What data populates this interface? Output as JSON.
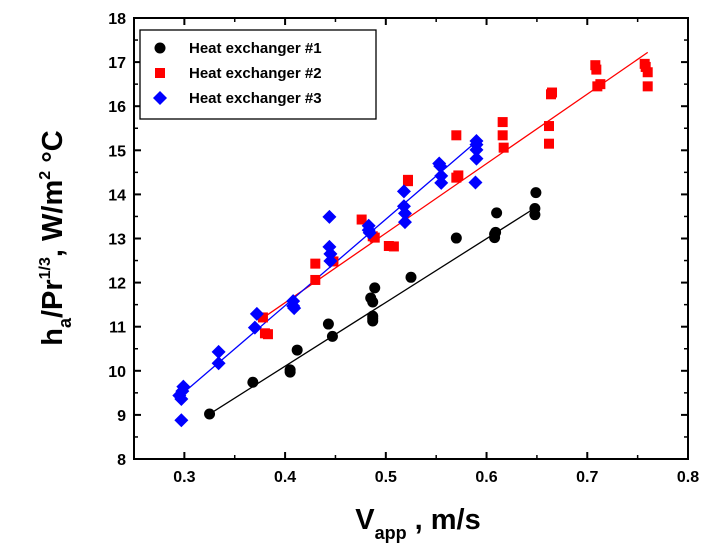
{
  "chart_data": {
    "type": "scatter",
    "xlabel": {
      "main": "V",
      "sub": "app",
      "rest": " , m/s"
    },
    "ylabel": {
      "p1": "h",
      "sub": "a",
      "p2": "/Pr",
      "sup1": "1/3",
      "p3": ", W/m",
      "sup2": "2",
      "p4": " °C"
    },
    "xlim": [
      0.25,
      0.8
    ],
    "ylim": [
      8,
      18
    ],
    "xticks": [
      "0.3",
      "0.4",
      "0.5",
      "0.6",
      "0.7",
      "0.8"
    ],
    "yticks": [
      "8",
      "9",
      "10",
      "11",
      "12",
      "13",
      "14",
      "15",
      "16",
      "17",
      "18"
    ],
    "legend_position": "top-left",
    "series": [
      {
        "name": "Heat exchanger #1",
        "color": "#000000",
        "marker": "circle",
        "fit": [
          [
            0.325,
            9.02
          ],
          [
            0.65,
            13.72
          ]
        ],
        "points": [
          [
            0.325,
            9.02
          ],
          [
            0.368,
            9.74
          ],
          [
            0.405,
            9.97
          ],
          [
            0.405,
            10.02
          ],
          [
            0.412,
            10.47
          ],
          [
            0.443,
            11.06
          ],
          [
            0.447,
            10.78
          ],
          [
            0.485,
            11.65
          ],
          [
            0.487,
            11.56
          ],
          [
            0.487,
            11.19
          ],
          [
            0.487,
            11.13
          ],
          [
            0.487,
            11.24
          ],
          [
            0.489,
            11.88
          ],
          [
            0.525,
            12.12
          ],
          [
            0.57,
            13.01
          ],
          [
            0.608,
            13.02
          ],
          [
            0.608,
            13.1
          ],
          [
            0.609,
            13.14
          ],
          [
            0.61,
            13.58
          ],
          [
            0.648,
            13.54
          ],
          [
            0.648,
            13.68
          ],
          [
            0.649,
            14.04
          ]
        ]
      },
      {
        "name": "Heat exchanger #2",
        "color": "#ff0000",
        "marker": "square",
        "fit": [
          [
            0.375,
            11.15
          ],
          [
            0.76,
            17.22
          ]
        ],
        "points": [
          [
            0.378,
            11.21
          ],
          [
            0.38,
            10.85
          ],
          [
            0.383,
            10.83
          ],
          [
            0.43,
            12.43
          ],
          [
            0.43,
            12.06
          ],
          [
            0.448,
            12.48
          ],
          [
            0.476,
            13.43
          ],
          [
            0.487,
            13.05
          ],
          [
            0.489,
            13.02
          ],
          [
            0.503,
            12.83
          ],
          [
            0.508,
            12.82
          ],
          [
            0.522,
            14.3
          ],
          [
            0.522,
            14.33
          ],
          [
            0.57,
            15.34
          ],
          [
            0.57,
            14.38
          ],
          [
            0.572,
            14.43
          ],
          [
            0.616,
            15.64
          ],
          [
            0.616,
            15.34
          ],
          [
            0.617,
            15.06
          ],
          [
            0.662,
            15.55
          ],
          [
            0.662,
            15.15
          ],
          [
            0.664,
            16.27
          ],
          [
            0.665,
            16.31
          ],
          [
            0.708,
            16.93
          ],
          [
            0.709,
            16.83
          ],
          [
            0.71,
            16.45
          ],
          [
            0.713,
            16.5
          ],
          [
            0.757,
            16.96
          ],
          [
            0.758,
            16.89
          ],
          [
            0.76,
            16.77
          ],
          [
            0.76,
            16.45
          ]
        ]
      },
      {
        "name": "Heat exchanger #3",
        "color": "#0000ff",
        "marker": "diamond",
        "fit": [
          [
            0.295,
            9.42
          ],
          [
            0.59,
            15.2
          ]
        ],
        "points": [
          [
            0.295,
            9.44
          ],
          [
            0.297,
            9.36
          ],
          [
            0.297,
            8.88
          ],
          [
            0.298,
            9.54
          ],
          [
            0.299,
            9.64
          ],
          [
            0.334,
            10.43
          ],
          [
            0.334,
            10.17
          ],
          [
            0.37,
            10.98
          ],
          [
            0.372,
            11.29
          ],
          [
            0.408,
            11.58
          ],
          [
            0.408,
            11.47
          ],
          [
            0.409,
            11.42
          ],
          [
            0.444,
            13.49
          ],
          [
            0.444,
            12.81
          ],
          [
            0.445,
            12.65
          ],
          [
            0.445,
            12.49
          ],
          [
            0.483,
            13.29
          ],
          [
            0.483,
            13.19
          ],
          [
            0.484,
            13.13
          ],
          [
            0.518,
            14.07
          ],
          [
            0.518,
            13.73
          ],
          [
            0.519,
            13.57
          ],
          [
            0.519,
            13.37
          ],
          [
            0.553,
            14.7
          ],
          [
            0.554,
            14.64
          ],
          [
            0.555,
            14.42
          ],
          [
            0.555,
            14.26
          ],
          [
            0.59,
            15.21
          ],
          [
            0.59,
            15.13
          ],
          [
            0.59,
            15.01
          ],
          [
            0.59,
            14.81
          ],
          [
            0.589,
            14.27
          ]
        ]
      }
    ]
  }
}
